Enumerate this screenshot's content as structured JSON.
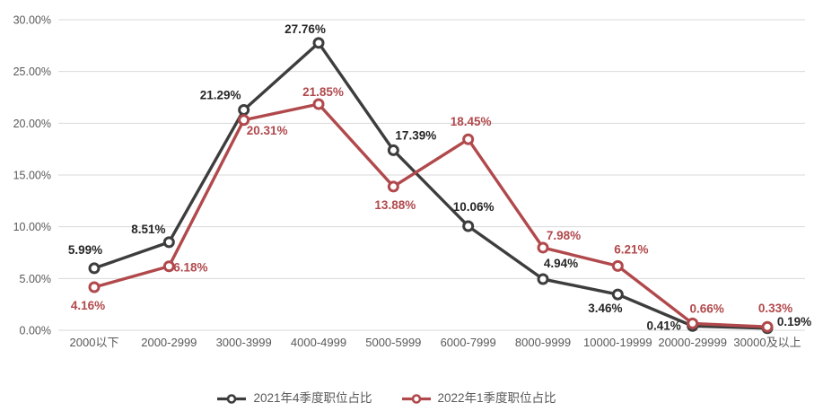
{
  "chart_data": {
    "type": "line",
    "title": "",
    "categories": [
      "2000以下",
      "2000-2999",
      "3000-3999",
      "4000-4999",
      "5000-5999",
      "6000-7999",
      "8000-9999",
      "10000-19999",
      "20000-29999",
      "30000及以上"
    ],
    "series": [
      {
        "name": "2021年4季度职位占比",
        "color": "#3d3d3d",
        "values": [
          5.99,
          8.51,
          21.29,
          27.76,
          17.39,
          10.06,
          4.94,
          3.46,
          0.41,
          0.19
        ]
      },
      {
        "name": "2022年1季度职位占比",
        "color": "#b1494c",
        "values": [
          4.16,
          6.18,
          20.31,
          21.85,
          13.88,
          18.45,
          7.98,
          6.21,
          0.66,
          0.33
        ]
      }
    ],
    "xlabel": "",
    "ylabel": "",
    "ylim": [
      0,
      30
    ],
    "y_tick_step": 5,
    "y_ticks": [
      "0.00%",
      "5.00%",
      "10.00%",
      "15.00%",
      "20.00%",
      "25.00%",
      "30.00%"
    ],
    "grid": true,
    "legend_position": "bottom",
    "data_label_format": "0.00%",
    "colors": {
      "gridline": "#d9d9d9",
      "axis_text": "#595959",
      "legend_text": "#595959",
      "background": "#ffffff",
      "marker_fill": "#ffffff",
      "black_series_label": "#262626"
    },
    "label_offsets": [
      [
        [
          -10,
          -16
        ],
        [
          -23,
          -10
        ],
        [
          -26,
          -12
        ],
        [
          -15,
          -11
        ],
        [
          25,
          -12
        ],
        [
          6,
          -17
        ],
        [
          20,
          -13
        ],
        [
          -14,
          20
        ],
        [
          -32,
          4
        ],
        [
          30,
          -3
        ]
      ],
      [
        [
          -7,
          25
        ],
        [
          24,
          6
        ],
        [
          26,
          16
        ],
        [
          5,
          -9
        ],
        [
          2,
          25
        ],
        [
          3,
          -15
        ],
        [
          23,
          -9
        ],
        [
          15,
          -14
        ],
        [
          16,
          -12
        ],
        [
          9,
          -16
        ]
      ]
    ]
  }
}
